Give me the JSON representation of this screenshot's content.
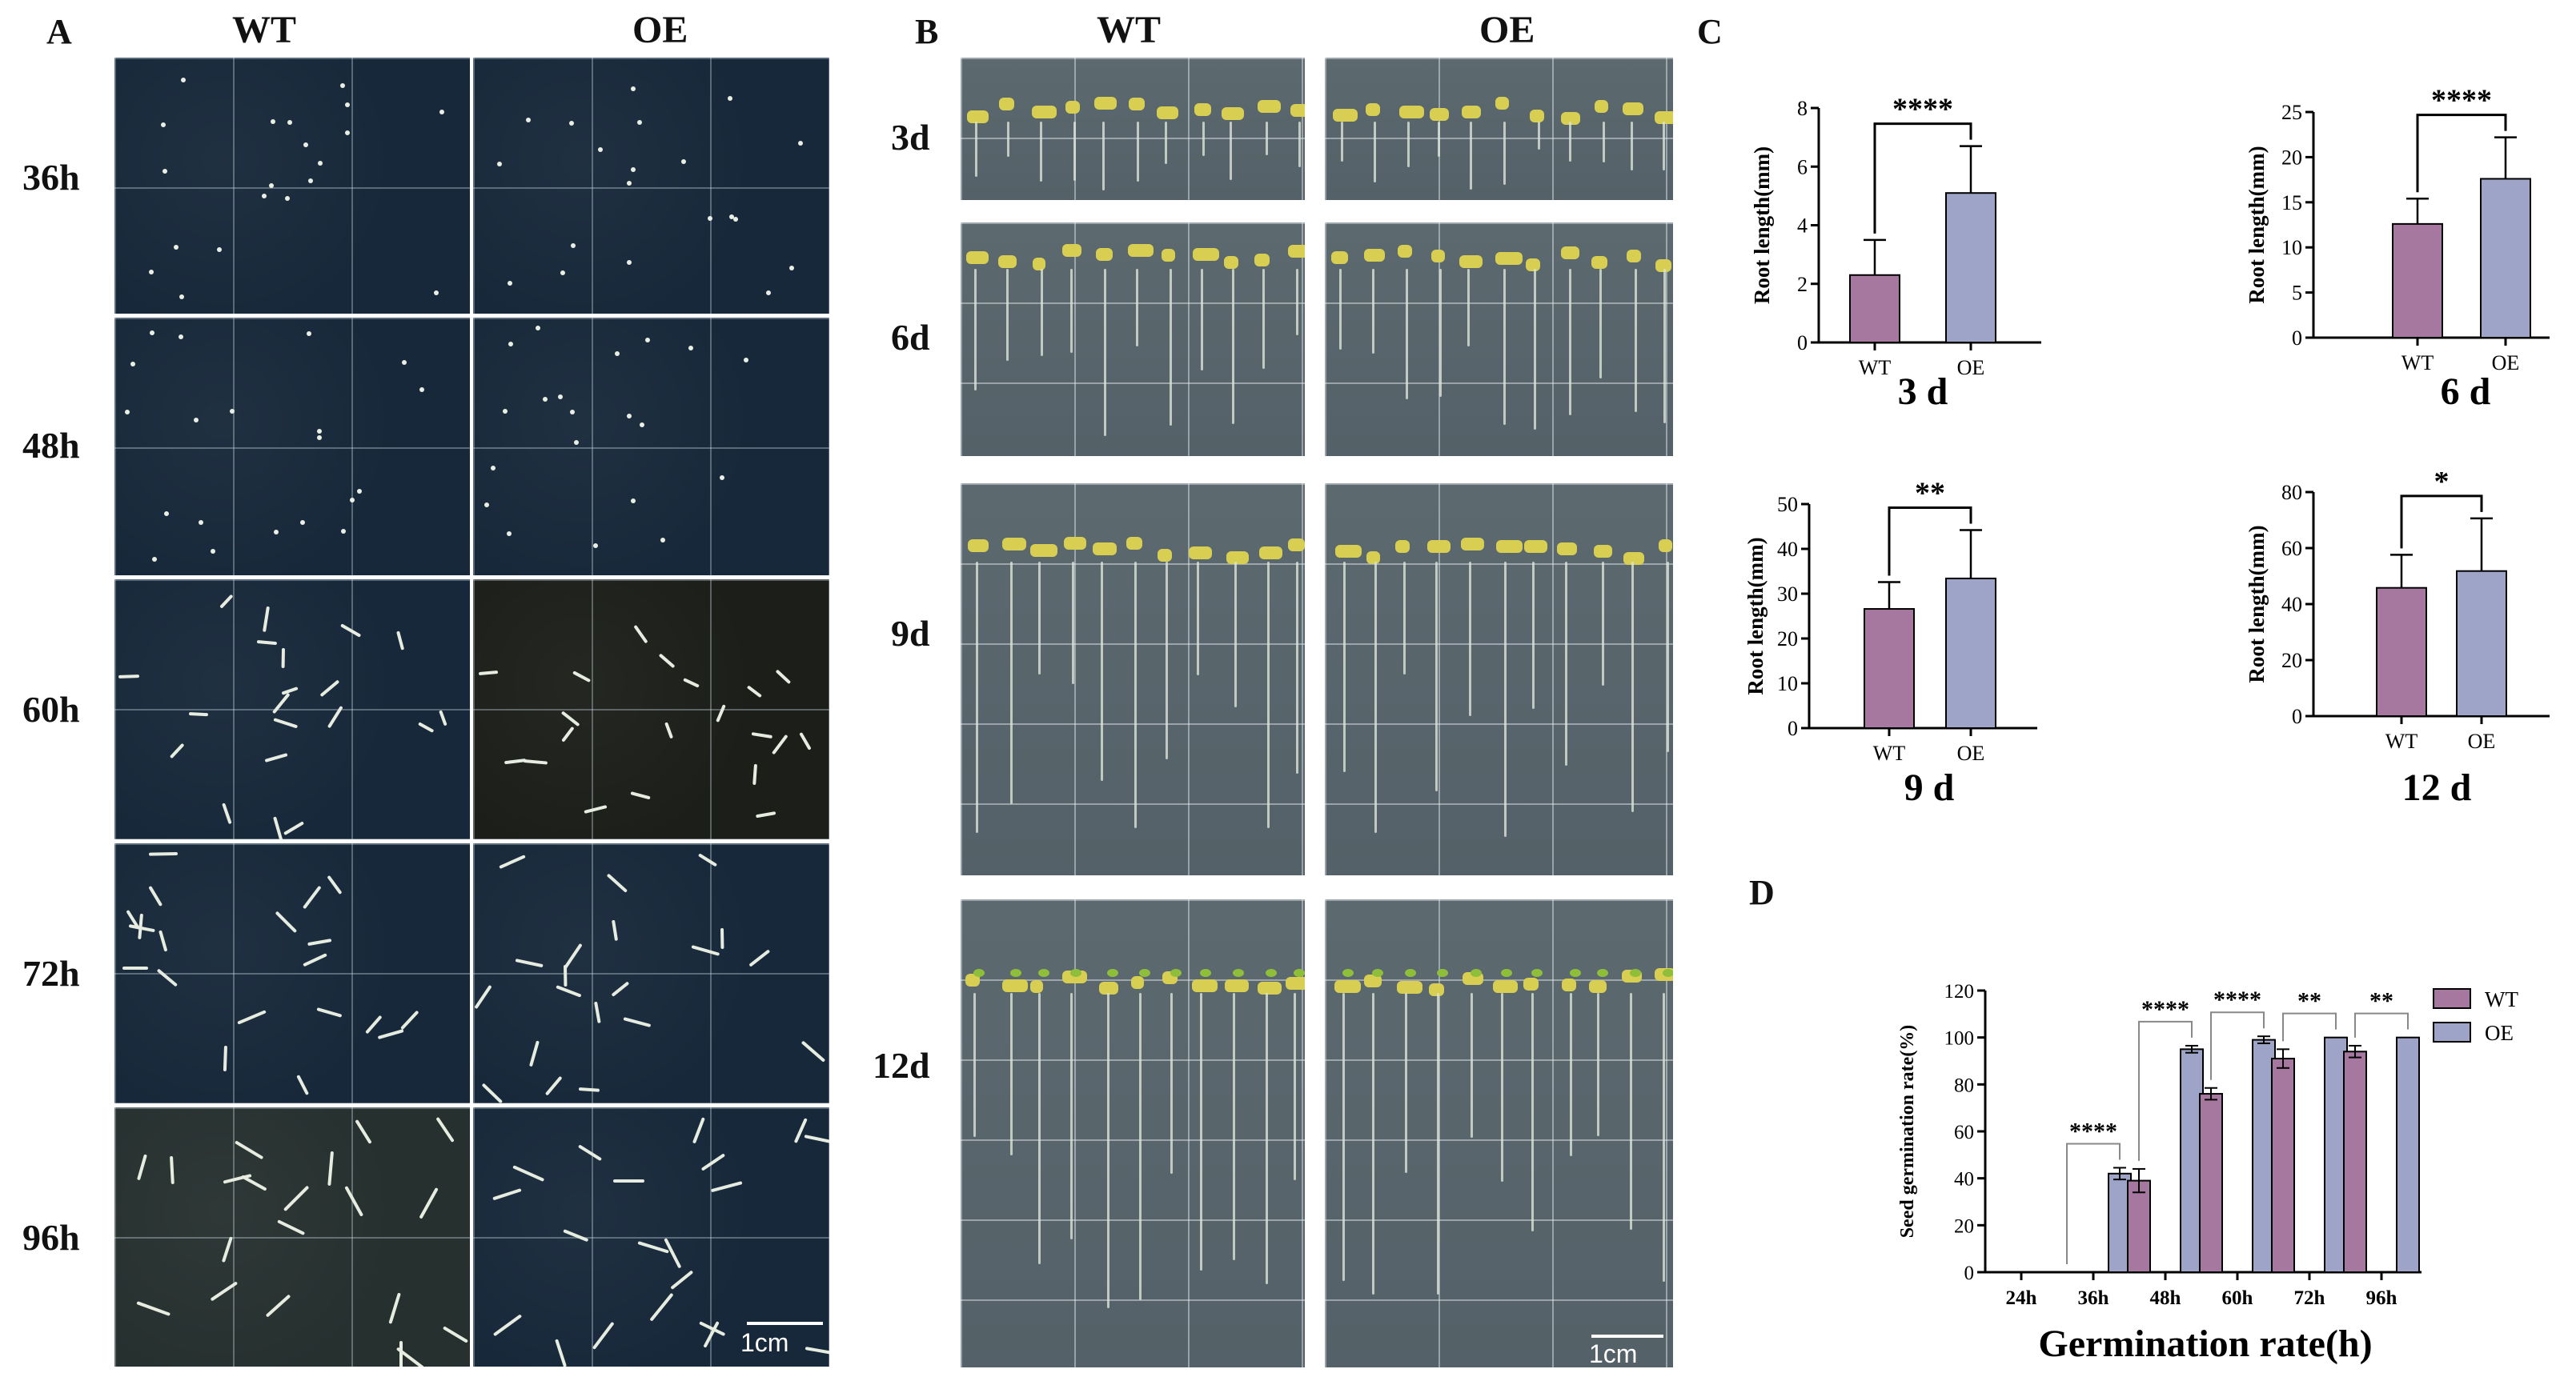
{
  "panels": {
    "A": {
      "letter": "A",
      "col_wt": "WT",
      "col_oe": "OE",
      "rows": [
        "36h",
        "48h",
        "60h",
        "72h",
        "96h"
      ],
      "scale": "1cm"
    },
    "B": {
      "letter": "B",
      "col_wt": "WT",
      "col_oe": "OE",
      "rows": [
        "3d",
        "6d",
        "9d",
        "12d"
      ],
      "scale": "1cm"
    },
    "C": {
      "letter": "C"
    },
    "D": {
      "letter": "D"
    }
  },
  "colors": {
    "wt": "#a6789f",
    "oe": "#9ea3c8"
  },
  "chart_data": [
    {
      "id": "c3d",
      "type": "bar",
      "title": "3 d",
      "ylabel": "Root length(mm)",
      "categories": [
        "WT",
        "OE"
      ],
      "values": [
        2.3,
        5.1
      ],
      "errors": [
        1.2,
        1.6
      ],
      "ylim": [
        0,
        8
      ],
      "yticks": [
        "0",
        "2",
        "4",
        "6",
        "8"
      ],
      "significance": "****"
    },
    {
      "id": "c6d",
      "type": "bar",
      "title": "6 d",
      "ylabel": "Root length(mm)",
      "categories": [
        "WT",
        "OE"
      ],
      "values": [
        12.6,
        17.6
      ],
      "errors": [
        2.8,
        4.6
      ],
      "ylim": [
        0,
        25
      ],
      "yticks": [
        "0",
        "5",
        "10",
        "15",
        "20",
        "25"
      ],
      "significance": "****"
    },
    {
      "id": "c9d",
      "type": "bar",
      "title": "9 d",
      "ylabel": "Root length(mm)",
      "categories": [
        "WT",
        "OE"
      ],
      "values": [
        26.6,
        33.4
      ],
      "errors": [
        6.0,
        10.8
      ],
      "ylim": [
        0,
        50
      ],
      "yticks": [
        "0",
        "10",
        "20",
        "30",
        "40",
        "50"
      ],
      "significance": "**"
    },
    {
      "id": "c12d",
      "type": "bar",
      "title": "12 d",
      "ylabel": "Root length(mm)",
      "categories": [
        "WT",
        "OE"
      ],
      "values": [
        45.8,
        51.8
      ],
      "errors": [
        11.8,
        18.8
      ],
      "ylim": [
        0,
        80
      ],
      "yticks": [
        "0",
        "20",
        "40",
        "60",
        "80"
      ],
      "significance": "*"
    },
    {
      "id": "germ",
      "type": "bar",
      "title": "",
      "xlabel": "Germination rate(h)",
      "ylabel": "Seed germination rate(%)",
      "categories": [
        "24h",
        "36h",
        "48h",
        "60h",
        "72h",
        "96h"
      ],
      "series": [
        {
          "name": "WT",
          "values": [
            0,
            0,
            39,
            76,
            91,
            94
          ],
          "errors": [
            0,
            0,
            5,
            2.5,
            4,
            2.5
          ]
        },
        {
          "name": "OE",
          "values": [
            0,
            42,
            95,
            99,
            100,
            100
          ],
          "errors": [
            0,
            2.5,
            1.5,
            1.5,
            0,
            0
          ]
        }
      ],
      "significance": [
        "",
        "****",
        "****",
        "****",
        "**",
        "**"
      ],
      "ylim": [
        0,
        120
      ],
      "yticks": [
        "0",
        "20",
        "40",
        "60",
        "80",
        "100",
        "120"
      ]
    }
  ]
}
